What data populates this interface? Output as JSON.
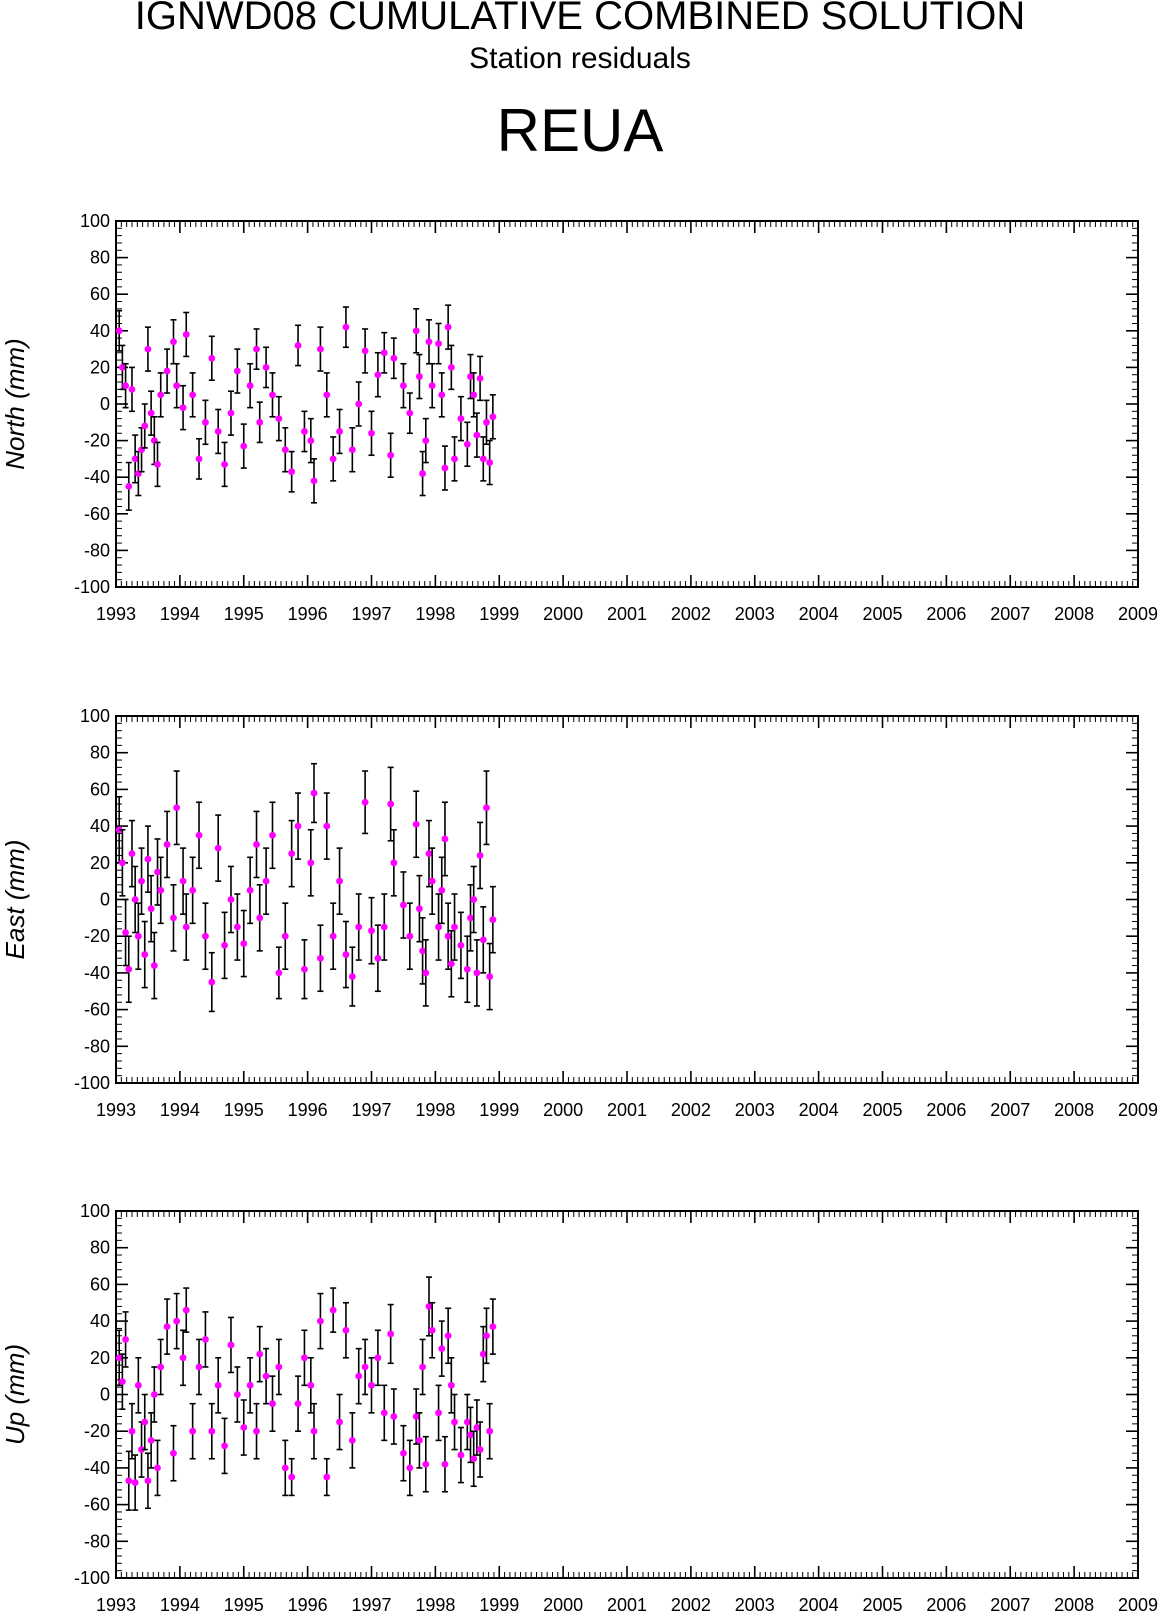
{
  "header": {
    "title": "IGNWD08 CUMULATIVE COMBINED SOLUTION",
    "subtitle": "Station residuals",
    "station": "REUA"
  },
  "colors": {
    "point": "#ff00ff",
    "errorbar": "#000000",
    "axis": "#000000"
  },
  "chart_data": [
    {
      "type": "scatter",
      "ylabel": "North (mm)",
      "xlim": [
        1993,
        2009
      ],
      "ylim": [
        -100,
        100
      ],
      "x_ticks": [
        "1993",
        "1994",
        "1995",
        "1996",
        "1997",
        "1998",
        "1999",
        "2000",
        "2001",
        "2002",
        "2003",
        "2004",
        "2005",
        "2006",
        "2007",
        "2008",
        "2009"
      ],
      "y_ticks": [
        "100",
        "80",
        "60",
        "40",
        "20",
        "0",
        "-20",
        "-40",
        "-60",
        "-80",
        "-100"
      ],
      "grid": false,
      "error_bars": true,
      "points": [
        [
          1993.05,
          40,
          11
        ],
        [
          1993.1,
          20,
          12
        ],
        [
          1993.15,
          10,
          12
        ],
        [
          1993.2,
          -45,
          13
        ],
        [
          1993.25,
          8,
          12
        ],
        [
          1993.3,
          -30,
          13
        ],
        [
          1993.35,
          -38,
          12
        ],
        [
          1993.4,
          -25,
          12
        ],
        [
          1993.45,
          -12,
          12
        ],
        [
          1993.5,
          30,
          12
        ],
        [
          1993.55,
          -5,
          12
        ],
        [
          1993.6,
          -20,
          13
        ],
        [
          1993.65,
          -33,
          12
        ],
        [
          1993.7,
          5,
          12
        ],
        [
          1993.8,
          18,
          12
        ],
        [
          1993.9,
          34,
          12
        ],
        [
          1993.95,
          10,
          12
        ],
        [
          1994.05,
          -2,
          12
        ],
        [
          1994.1,
          38,
          12
        ],
        [
          1994.2,
          5,
          12
        ],
        [
          1994.3,
          -30,
          11
        ],
        [
          1994.4,
          -10,
          12
        ],
        [
          1994.5,
          25,
          12
        ],
        [
          1994.6,
          -15,
          12
        ],
        [
          1994.7,
          -33,
          12
        ],
        [
          1994.8,
          -5,
          12
        ],
        [
          1994.9,
          18,
          12
        ],
        [
          1995.0,
          -23,
          12
        ],
        [
          1995.1,
          10,
          12
        ],
        [
          1995.2,
          30,
          11
        ],
        [
          1995.25,
          -10,
          11
        ],
        [
          1995.35,
          20,
          11
        ],
        [
          1995.45,
          5,
          12
        ],
        [
          1995.55,
          -8,
          12
        ],
        [
          1995.65,
          -25,
          12
        ],
        [
          1995.75,
          -37,
          11
        ],
        [
          1995.85,
          32,
          11
        ],
        [
          1995.95,
          -15,
          11
        ],
        [
          1996.05,
          -20,
          12
        ],
        [
          1996.1,
          -42,
          12
        ],
        [
          1996.2,
          30,
          12
        ],
        [
          1996.3,
          5,
          12
        ],
        [
          1996.4,
          -30,
          12
        ],
        [
          1996.5,
          -15,
          12
        ],
        [
          1996.6,
          42,
          11
        ],
        [
          1996.7,
          -25,
          12
        ],
        [
          1996.8,
          0,
          12
        ],
        [
          1996.9,
          29,
          12
        ],
        [
          1997.0,
          -16,
          12
        ],
        [
          1997.1,
          16,
          12
        ],
        [
          1997.2,
          28,
          11
        ],
        [
          1997.3,
          -28,
          12
        ],
        [
          1997.35,
          25,
          11
        ],
        [
          1997.5,
          10,
          12
        ],
        [
          1997.6,
          -5,
          11
        ],
        [
          1997.7,
          40,
          12
        ],
        [
          1997.75,
          15,
          12
        ],
        [
          1997.8,
          -38,
          12
        ],
        [
          1997.85,
          -20,
          12
        ],
        [
          1997.9,
          34,
          12
        ],
        [
          1997.95,
          10,
          12
        ],
        [
          1998.05,
          33,
          11
        ],
        [
          1998.1,
          5,
          12
        ],
        [
          1998.15,
          -35,
          12
        ],
        [
          1998.2,
          42,
          12
        ],
        [
          1998.25,
          20,
          12
        ],
        [
          1998.3,
          -30,
          12
        ],
        [
          1998.4,
          -8,
          12
        ],
        [
          1998.5,
          -22,
          12
        ],
        [
          1998.55,
          15,
          12
        ],
        [
          1998.6,
          5,
          12
        ],
        [
          1998.65,
          -17,
          12
        ],
        [
          1998.7,
          14,
          12
        ],
        [
          1998.75,
          -30,
          12
        ],
        [
          1998.8,
          -10,
          12
        ],
        [
          1998.85,
          -32,
          12
        ],
        [
          1998.9,
          -7,
          12
        ]
      ]
    },
    {
      "type": "scatter",
      "ylabel": "East (mm)",
      "xlim": [
        1993,
        2009
      ],
      "ylim": [
        -100,
        100
      ],
      "x_ticks": [
        "1993",
        "1994",
        "1995",
        "1996",
        "1997",
        "1998",
        "1999",
        "2000",
        "2001",
        "2002",
        "2003",
        "2004",
        "2005",
        "2006",
        "2007",
        "2008",
        "2009"
      ],
      "y_ticks": [
        "100",
        "80",
        "60",
        "40",
        "20",
        "0",
        "-20",
        "-40",
        "-60",
        "-80",
        "-100"
      ],
      "grid": false,
      "error_bars": true,
      "points": [
        [
          1993.05,
          38,
          18
        ],
        [
          1993.1,
          20,
          18
        ],
        [
          1993.15,
          -18,
          18
        ],
        [
          1993.2,
          -38,
          18
        ],
        [
          1993.25,
          25,
          18
        ],
        [
          1993.3,
          0,
          18
        ],
        [
          1993.35,
          -20,
          18
        ],
        [
          1993.4,
          10,
          18
        ],
        [
          1993.45,
          -30,
          18
        ],
        [
          1993.5,
          22,
          18
        ],
        [
          1993.55,
          -5,
          18
        ],
        [
          1993.6,
          -36,
          18
        ],
        [
          1993.65,
          15,
          18
        ],
        [
          1993.7,
          5,
          18
        ],
        [
          1993.8,
          30,
          18
        ],
        [
          1993.9,
          -10,
          18
        ],
        [
          1993.95,
          50,
          20
        ],
        [
          1994.05,
          10,
          18
        ],
        [
          1994.1,
          -15,
          18
        ],
        [
          1994.2,
          5,
          18
        ],
        [
          1994.3,
          35,
          18
        ],
        [
          1994.4,
          -20,
          18
        ],
        [
          1994.5,
          -45,
          16
        ],
        [
          1994.6,
          28,
          18
        ],
        [
          1994.7,
          -25,
          18
        ],
        [
          1994.8,
          0,
          18
        ],
        [
          1994.9,
          -15,
          18
        ],
        [
          1995.0,
          -24,
          18
        ],
        [
          1995.1,
          5,
          18
        ],
        [
          1995.2,
          30,
          18
        ],
        [
          1995.25,
          -10,
          18
        ],
        [
          1995.35,
          10,
          18
        ],
        [
          1995.45,
          35,
          18
        ],
        [
          1995.55,
          -40,
          14
        ],
        [
          1995.65,
          -20,
          18
        ],
        [
          1995.75,
          25,
          18
        ],
        [
          1995.85,
          40,
          18
        ],
        [
          1995.95,
          -38,
          16
        ],
        [
          1996.05,
          20,
          18
        ],
        [
          1996.1,
          58,
          16
        ],
        [
          1996.2,
          -32,
          18
        ],
        [
          1996.3,
          40,
          18
        ],
        [
          1996.4,
          -20,
          18
        ],
        [
          1996.5,
          10,
          18
        ],
        [
          1996.6,
          -30,
          18
        ],
        [
          1996.7,
          -42,
          16
        ],
        [
          1996.8,
          -15,
          18
        ],
        [
          1996.9,
          53,
          17
        ],
        [
          1997.0,
          -17,
          18
        ],
        [
          1997.1,
          -32,
          18
        ],
        [
          1997.2,
          -15,
          18
        ],
        [
          1997.3,
          52,
          20
        ],
        [
          1997.35,
          20,
          18
        ],
        [
          1997.5,
          -3,
          18
        ],
        [
          1997.6,
          -20,
          18
        ],
        [
          1997.7,
          41,
          18
        ],
        [
          1997.75,
          -5,
          18
        ],
        [
          1997.8,
          -28,
          18
        ],
        [
          1997.85,
          -40,
          18
        ],
        [
          1997.9,
          25,
          18
        ],
        [
          1997.95,
          10,
          18
        ],
        [
          1998.05,
          -15,
          18
        ],
        [
          1998.1,
          5,
          18
        ],
        [
          1998.15,
          33,
          20
        ],
        [
          1998.2,
          -20,
          18
        ],
        [
          1998.25,
          -35,
          18
        ],
        [
          1998.3,
          -15,
          18
        ],
        [
          1998.4,
          -25,
          18
        ],
        [
          1998.5,
          -38,
          18
        ],
        [
          1998.55,
          -10,
          18
        ],
        [
          1998.6,
          0,
          18
        ],
        [
          1998.65,
          -40,
          18
        ],
        [
          1998.7,
          24,
          18
        ],
        [
          1998.75,
          -22,
          18
        ],
        [
          1998.8,
          50,
          20
        ],
        [
          1998.85,
          -42,
          18
        ],
        [
          1998.9,
          -11,
          18
        ]
      ]
    },
    {
      "type": "scatter",
      "ylabel": "Up (mm)",
      "xlim": [
        1993,
        2009
      ],
      "ylim": [
        -100,
        100
      ],
      "x_ticks": [
        "1993",
        "1994",
        "1995",
        "1996",
        "1997",
        "1998",
        "1999",
        "2000",
        "2001",
        "2002",
        "2003",
        "2004",
        "2005",
        "2006",
        "2007",
        "2008",
        "2009"
      ],
      "y_ticks": [
        "100",
        "80",
        "60",
        "40",
        "20",
        "0",
        "-20",
        "-40",
        "-60",
        "-80",
        "-100"
      ],
      "grid": false,
      "error_bars": true,
      "points": [
        [
          1993.05,
          20,
          15
        ],
        [
          1993.1,
          7,
          15
        ],
        [
          1993.15,
          30,
          15
        ],
        [
          1993.2,
          -47,
          16
        ],
        [
          1993.25,
          -20,
          15
        ],
        [
          1993.3,
          -48,
          15
        ],
        [
          1993.35,
          5,
          15
        ],
        [
          1993.4,
          -30,
          15
        ],
        [
          1993.45,
          -15,
          15
        ],
        [
          1993.5,
          -47,
          15
        ],
        [
          1993.55,
          -25,
          15
        ],
        [
          1993.6,
          0,
          15
        ],
        [
          1993.65,
          -40,
          15
        ],
        [
          1993.7,
          15,
          15
        ],
        [
          1993.8,
          37,
          15
        ],
        [
          1993.9,
          -32,
          15
        ],
        [
          1993.95,
          40,
          15
        ],
        [
          1994.05,
          20,
          15
        ],
        [
          1994.1,
          46,
          12
        ],
        [
          1994.2,
          -20,
          15
        ],
        [
          1994.3,
          15,
          15
        ],
        [
          1994.4,
          30,
          15
        ],
        [
          1994.5,
          -20,
          15
        ],
        [
          1994.6,
          5,
          15
        ],
        [
          1994.7,
          -28,
          15
        ],
        [
          1994.8,
          27,
          15
        ],
        [
          1994.9,
          0,
          15
        ],
        [
          1995.0,
          -18,
          15
        ],
        [
          1995.1,
          5,
          15
        ],
        [
          1995.2,
          -20,
          15
        ],
        [
          1995.25,
          22,
          15
        ],
        [
          1995.35,
          10,
          15
        ],
        [
          1995.45,
          -5,
          15
        ],
        [
          1995.55,
          15,
          15
        ],
        [
          1995.65,
          -40,
          15
        ],
        [
          1995.75,
          -45,
          10
        ],
        [
          1995.85,
          -5,
          15
        ],
        [
          1995.95,
          20,
          15
        ],
        [
          1996.05,
          5,
          15
        ],
        [
          1996.1,
          -20,
          15
        ],
        [
          1996.2,
          40,
          15
        ],
        [
          1996.3,
          -45,
          10
        ],
        [
          1996.4,
          46,
          12
        ],
        [
          1996.5,
          -15,
          15
        ],
        [
          1996.6,
          35,
          15
        ],
        [
          1996.7,
          -25,
          15
        ],
        [
          1996.8,
          10,
          15
        ],
        [
          1996.9,
          15,
          15
        ],
        [
          1997.0,
          5,
          15
        ],
        [
          1997.1,
          20,
          15
        ],
        [
          1997.2,
          -10,
          15
        ],
        [
          1997.3,
          33,
          16
        ],
        [
          1997.35,
          -12,
          15
        ],
        [
          1997.5,
          -32,
          15
        ],
        [
          1997.6,
          -40,
          15
        ],
        [
          1997.7,
          -12,
          15
        ],
        [
          1997.75,
          -25,
          15
        ],
        [
          1997.8,
          15,
          15
        ],
        [
          1997.85,
          -38,
          15
        ],
        [
          1997.9,
          48,
          16
        ],
        [
          1997.95,
          35,
          15
        ],
        [
          1998.05,
          -10,
          15
        ],
        [
          1998.1,
          25,
          15
        ],
        [
          1998.15,
          -38,
          15
        ],
        [
          1998.2,
          32,
          15
        ],
        [
          1998.25,
          5,
          15
        ],
        [
          1998.3,
          -15,
          15
        ],
        [
          1998.4,
          -33,
          15
        ],
        [
          1998.5,
          -15,
          15
        ],
        [
          1998.55,
          -22,
          15
        ],
        [
          1998.6,
          -35,
          15
        ],
        [
          1998.65,
          -18,
          15
        ],
        [
          1998.7,
          -30,
          15
        ],
        [
          1998.75,
          22,
          15
        ],
        [
          1998.8,
          32,
          15
        ],
        [
          1998.85,
          -20,
          15
        ],
        [
          1998.9,
          37,
          15
        ]
      ]
    }
  ]
}
